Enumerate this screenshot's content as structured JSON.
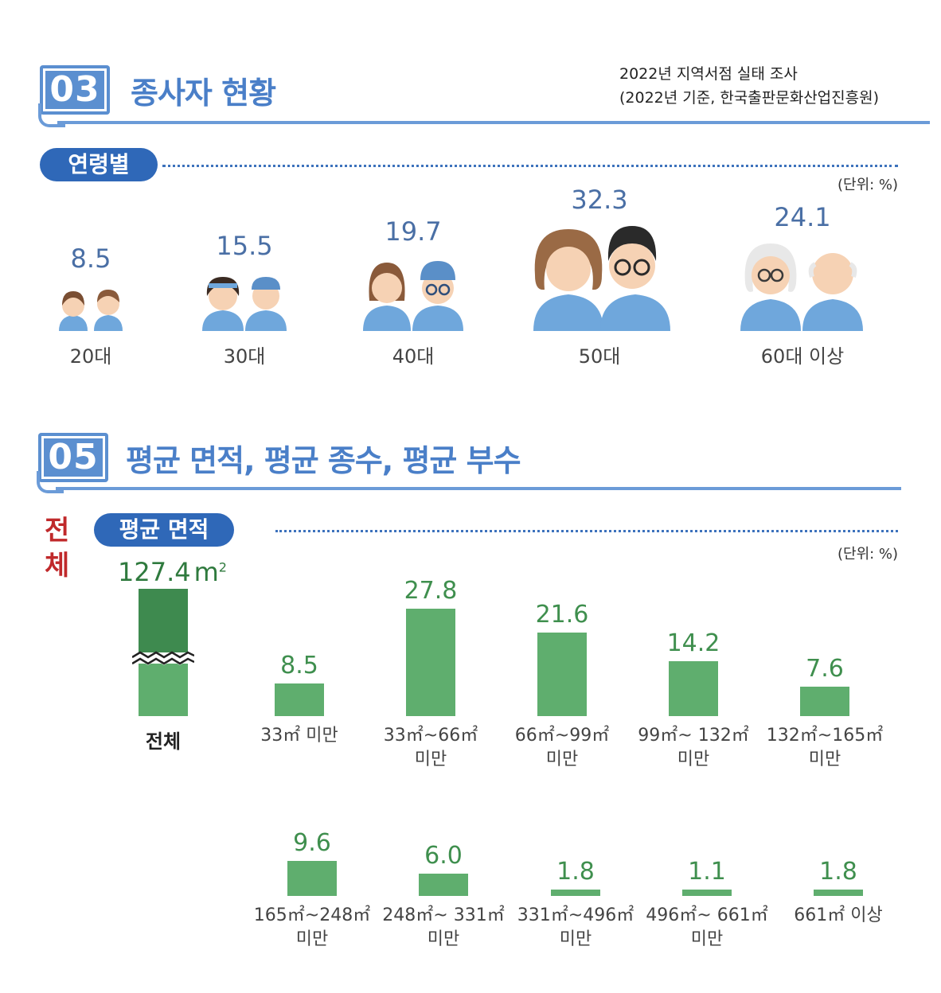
{
  "section03": {
    "number": "03",
    "title": "종사자 현황",
    "source_line1": "2022년 지역서점 실태 조사",
    "source_line2": "(2022년 기준, 한국출판문화산업진흥원)",
    "pill": "연령별",
    "unit": "(단위: %)"
  },
  "section05": {
    "number": "05",
    "title": "평균 면적, 평균 종수, 평균 부수",
    "side_label_1": "전",
    "side_label_2": "체",
    "pill": "평균 면적",
    "unit": "(단위: %)",
    "total_value": "127.4",
    "total_unit": "m",
    "total_sup": "2",
    "total_label": "전체"
  },
  "colors": {
    "blue_accent": "#5b8fd0",
    "pill_blue": "#2f68b8",
    "bar_green": "#5fae6e",
    "bar_green_dark": "#3e8a4f",
    "value_green": "#3f8f4e",
    "red_label": "#c0292b"
  },
  "chart_data": [
    {
      "type": "bar",
      "categories": [
        "20대",
        "30대",
        "40대",
        "50대",
        "60대 이상"
      ],
      "values": [
        8.5,
        15.5,
        19.7,
        32.3,
        24.1
      ],
      "value_labels": [
        "8.5",
        "15.5",
        "19.7",
        "32.3",
        "24.1"
      ],
      "icon_names": [
        "couple-20s-icon",
        "couple-30s-icon",
        "couple-40s-icon",
        "couple-50s-icon",
        "couple-60s-icon"
      ]
    },
    {
      "type": "bar",
      "categories": [
        "33㎡ 미만",
        "33㎡~66㎡ 미만",
        "66㎡~99㎡ 미만",
        "99㎡~ 132㎡ 미만",
        "132㎡~165㎡ 미만"
      ],
      "label_line1": [
        "33㎡ 미만",
        "33㎡~66㎡",
        "66㎡~99㎡",
        "99㎡~ 132㎡",
        "132㎡~165㎡"
      ],
      "label_line2": [
        "",
        "미만",
        "미만",
        "미만",
        "미만"
      ],
      "values": [
        8.5,
        27.8,
        21.6,
        14.2,
        7.6
      ],
      "value_labels": [
        "8.5",
        "27.8",
        "21.6",
        "14.2",
        "7.6"
      ]
    },
    {
      "type": "bar",
      "categories": [
        "165㎡~248㎡ 미만",
        "248㎡~ 331㎡ 미만",
        "331㎡~496㎡ 미만",
        "496㎡~ 661㎡ 미만",
        "661㎡ 이상"
      ],
      "label_line1": [
        "165㎡~248㎡",
        "248㎡~ 331㎡",
        "331㎡~496㎡",
        "496㎡~ 661㎡",
        "661㎡ 이상"
      ],
      "label_line2": [
        "미만",
        "미만",
        "미만",
        "미만",
        ""
      ],
      "values": [
        9.6,
        6.0,
        1.8,
        1.1,
        1.8
      ],
      "value_labels": [
        "9.6",
        "6.0",
        "1.8",
        "1.1",
        "1.8"
      ]
    }
  ]
}
